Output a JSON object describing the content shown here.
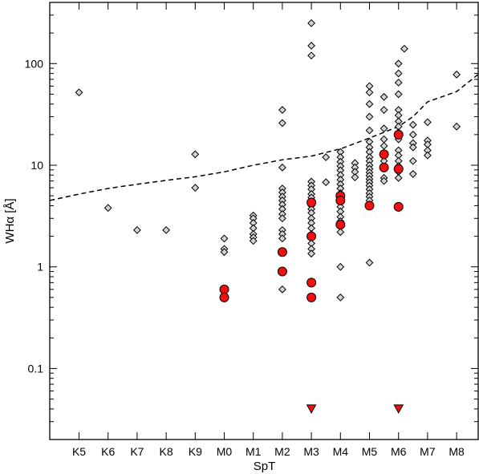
{
  "chart_data": {
    "type": "scatter",
    "xlabel": "SpT",
    "ylabel": "WHα [Å]",
    "y_scale": "log",
    "ylim": [
      0.02,
      400
    ],
    "xlim": [
      "K4",
      "M8.9"
    ],
    "x_categories": [
      "K5",
      "K6",
      "K7",
      "K8",
      "K9",
      "M0",
      "M1",
      "M2",
      "M3",
      "M4",
      "M5",
      "M6",
      "M7",
      "M8"
    ],
    "y_ticks": [
      {
        "value": 0.1,
        "label": "0.1"
      },
      {
        "value": 1,
        "label": "1"
      },
      {
        "value": 10,
        "label": "10"
      },
      {
        "value": 100,
        "label": "100"
      }
    ],
    "grid": false,
    "colors": {
      "diamond_fill": "#d3d3d3",
      "circle_fill": "#ee1111",
      "outline": "#000000",
      "line": "#000000"
    },
    "series": [
      {
        "marker": "diamond",
        "points": [
          {
            "x": "K5",
            "y": 52
          },
          {
            "x": "K6",
            "y": 3.8
          },
          {
            "x": "K7",
            "y": 2.3
          },
          {
            "x": "K8",
            "y": 2.3
          },
          {
            "x": "K9",
            "y": 12.8
          },
          {
            "x": "K9",
            "y": 6.0
          },
          {
            "x": "M0",
            "y": 1.9
          },
          {
            "x": "M0",
            "y": 1.5
          },
          {
            "x": "M0",
            "y": 1.4
          },
          {
            "x": "M1",
            "y": 3.2
          },
          {
            "x": "M1",
            "y": 3.0
          },
          {
            "x": "M1",
            "y": 2.7
          },
          {
            "x": "M1",
            "y": 2.4
          },
          {
            "x": "M1",
            "y": 2.1
          },
          {
            "x": "M1",
            "y": 1.95
          },
          {
            "x": "M1",
            "y": 1.8
          },
          {
            "x": "M2",
            "y": 35
          },
          {
            "x": "M2",
            "y": 26
          },
          {
            "x": "M2",
            "y": 9.5
          },
          {
            "x": "M2",
            "y": 5.9
          },
          {
            "x": "M2",
            "y": 5.4
          },
          {
            "x": "M2",
            "y": 4.9
          },
          {
            "x": "M2",
            "y": 4.5
          },
          {
            "x": "M2",
            "y": 4.1
          },
          {
            "x": "M2",
            "y": 3.7
          },
          {
            "x": "M2",
            "y": 3.3
          },
          {
            "x": "M2",
            "y": 3.0
          },
          {
            "x": "M2",
            "y": 2.3
          },
          {
            "x": "M2",
            "y": 2.1
          },
          {
            "x": "M2",
            "y": 1.9
          },
          {
            "x": "M2",
            "y": 0.6
          },
          {
            "x": "M3",
            "y": 250
          },
          {
            "x": "M3",
            "y": 150
          },
          {
            "x": "M3",
            "y": 120
          },
          {
            "x": "M3",
            "y": 6.9
          },
          {
            "x": "M3",
            "y": 6.3
          },
          {
            "x": "M3",
            "y": 5.8
          },
          {
            "x": "M3",
            "y": 5.2
          },
          {
            "x": "M3",
            "y": 4.8
          },
          {
            "x": "M3",
            "y": 4.4
          },
          {
            "x": "M3",
            "y": 4.0
          },
          {
            "x": "M3",
            "y": 3.7
          },
          {
            "x": "M3",
            "y": 3.4
          },
          {
            "x": "M3",
            "y": 3.0
          },
          {
            "x": "M3",
            "y": 2.7
          },
          {
            "x": "M3",
            "y": 2.4
          },
          {
            "x": "M3",
            "y": 2.1
          },
          {
            "x": "M3",
            "y": 1.9
          },
          {
            "x": "M3",
            "y": 1.7
          },
          {
            "x": "M3",
            "y": 1.5
          },
          {
            "x": "M3",
            "y": 1.35
          },
          {
            "x": "M3.5",
            "y": 12
          },
          {
            "x": "M3.5",
            "y": 6.8
          },
          {
            "x": "M4",
            "y": 13.5
          },
          {
            "x": "M4",
            "y": 12
          },
          {
            "x": "M4",
            "y": 10.8
          },
          {
            "x": "M4",
            "y": 9.8
          },
          {
            "x": "M4",
            "y": 8.9
          },
          {
            "x": "M4",
            "y": 8.0
          },
          {
            "x": "M4",
            "y": 7.2
          },
          {
            "x": "M4",
            "y": 6.5
          },
          {
            "x": "M4",
            "y": 5.9
          },
          {
            "x": "M4",
            "y": 5.3
          },
          {
            "x": "M4",
            "y": 4.8
          },
          {
            "x": "M4",
            "y": 4.3
          },
          {
            "x": "M4",
            "y": 3.9
          },
          {
            "x": "M4",
            "y": 3.5
          },
          {
            "x": "M4",
            "y": 3.1
          },
          {
            "x": "M4",
            "y": 2.8
          },
          {
            "x": "M4",
            "y": 2.2
          },
          {
            "x": "M4",
            "y": 1.0
          },
          {
            "x": "M4",
            "y": 0.5
          },
          {
            "x": "M4.5",
            "y": 10.5
          },
          {
            "x": "M4.5",
            "y": 9.5
          },
          {
            "x": "M4.5",
            "y": 8.6
          },
          {
            "x": "M4.5",
            "y": 7.6
          },
          {
            "x": "M5",
            "y": 60
          },
          {
            "x": "M5",
            "y": 52
          },
          {
            "x": "M5",
            "y": 40
          },
          {
            "x": "M5",
            "y": 30
          },
          {
            "x": "M5",
            "y": 22
          },
          {
            "x": "M5",
            "y": 17
          },
          {
            "x": "M5",
            "y": 15
          },
          {
            "x": "M5",
            "y": 13.5
          },
          {
            "x": "M5",
            "y": 12
          },
          {
            "x": "M5",
            "y": 11
          },
          {
            "x": "M5",
            "y": 10
          },
          {
            "x": "M5",
            "y": 9.2
          },
          {
            "x": "M5",
            "y": 8.5
          },
          {
            "x": "M5",
            "y": 7.9
          },
          {
            "x": "M5",
            "y": 7.3
          },
          {
            "x": "M5",
            "y": 6.8
          },
          {
            "x": "M5",
            "y": 6.3
          },
          {
            "x": "M5",
            "y": 5.8
          },
          {
            "x": "M5",
            "y": 5.3
          },
          {
            "x": "M5",
            "y": 4.9
          },
          {
            "x": "M5",
            "y": 4.5
          },
          {
            "x": "M5",
            "y": 4.1
          },
          {
            "x": "M5",
            "y": 1.1
          },
          {
            "x": "M5.5",
            "y": 47
          },
          {
            "x": "M5.5",
            "y": 35
          },
          {
            "x": "M5.5",
            "y": 23
          },
          {
            "x": "M5.5",
            "y": 18
          },
          {
            "x": "M5.5",
            "y": 15.5
          },
          {
            "x": "M5.5",
            "y": 13
          },
          {
            "x": "M5.5",
            "y": 11
          },
          {
            "x": "M5.5",
            "y": 9.5
          },
          {
            "x": "M5.5",
            "y": 7.5
          },
          {
            "x": "M5.5",
            "y": 7.0
          },
          {
            "x": "M6",
            "y": 100
          },
          {
            "x": "M6",
            "y": 80
          },
          {
            "x": "M6",
            "y": 65
          },
          {
            "x": "M6",
            "y": 50
          },
          {
            "x": "M6",
            "y": 35
          },
          {
            "x": "M6",
            "y": 31
          },
          {
            "x": "M6",
            "y": 27
          },
          {
            "x": "M6",
            "y": 24
          },
          {
            "x": "M6",
            "y": 21
          },
          {
            "x": "M6",
            "y": 18
          },
          {
            "x": "M6",
            "y": 14
          },
          {
            "x": "M6",
            "y": 12.5
          },
          {
            "x": "M6",
            "y": 11
          },
          {
            "x": "M6",
            "y": 9.8
          },
          {
            "x": "M6",
            "y": 8.6
          },
          {
            "x": "M6",
            "y": 7.5
          },
          {
            "x": "M6.2",
            "y": 140
          },
          {
            "x": "M6.5",
            "y": 25
          },
          {
            "x": "M6.5",
            "y": 20
          },
          {
            "x": "M6.5",
            "y": 16.5
          },
          {
            "x": "M6.5",
            "y": 15
          },
          {
            "x": "M6.5",
            "y": 11
          },
          {
            "x": "M6.5",
            "y": 8.2
          },
          {
            "x": "M7",
            "y": 26.5
          },
          {
            "x": "M7",
            "y": 17.5
          },
          {
            "x": "M7",
            "y": 16
          },
          {
            "x": "M7",
            "y": 14
          },
          {
            "x": "M7",
            "y": 12.5
          },
          {
            "x": "M8",
            "y": 78
          },
          {
            "x": "M8",
            "y": 24
          }
        ]
      },
      {
        "marker": "circle",
        "points": [
          {
            "x": "M0",
            "y": 0.6
          },
          {
            "x": "M0",
            "y": 0.5
          },
          {
            "x": "M2",
            "y": 1.4
          },
          {
            "x": "M2",
            "y": 0.9
          },
          {
            "x": "M3",
            "y": 4.3
          },
          {
            "x": "M3",
            "y": 2.0
          },
          {
            "x": "M3",
            "y": 0.7
          },
          {
            "x": "M3",
            "y": 0.5
          },
          {
            "x": "M4",
            "y": 5.0
          },
          {
            "x": "M4",
            "y": 4.5
          },
          {
            "x": "M4",
            "y": 2.6
          },
          {
            "x": "M5",
            "y": 4.0
          },
          {
            "x": "M5.5",
            "y": 12.8
          },
          {
            "x": "M5.5",
            "y": 9.5
          },
          {
            "x": "M6",
            "y": 20
          },
          {
            "x": "M6",
            "y": 9.2
          },
          {
            "x": "M6",
            "y": 3.9
          }
        ]
      },
      {
        "marker": "triangle-down",
        "points": [
          {
            "x": "M3",
            "y": 0.04
          },
          {
            "x": "M6",
            "y": 0.04
          }
        ]
      },
      {
        "marker": "dashed-line",
        "points": [
          {
            "x": "K4",
            "y": 4.5
          },
          {
            "x": "K5",
            "y": 5.2
          },
          {
            "x": "K6",
            "y": 5.9
          },
          {
            "x": "K7",
            "y": 6.5
          },
          {
            "x": "K8",
            "y": 7.1
          },
          {
            "x": "K9",
            "y": 7.7
          },
          {
            "x": "M0",
            "y": 8.6
          },
          {
            "x": "M1",
            "y": 10
          },
          {
            "x": "M2",
            "y": 11.3
          },
          {
            "x": "M3",
            "y": 12.3
          },
          {
            "x": "M4",
            "y": 14.5
          },
          {
            "x": "M5",
            "y": 18.5
          },
          {
            "x": "M6",
            "y": 24
          },
          {
            "x": "M6.5",
            "y": 30
          },
          {
            "x": "M7",
            "y": 42
          },
          {
            "x": "M8",
            "y": 53
          },
          {
            "x": "M8.9",
            "y": 85
          }
        ]
      }
    ]
  }
}
